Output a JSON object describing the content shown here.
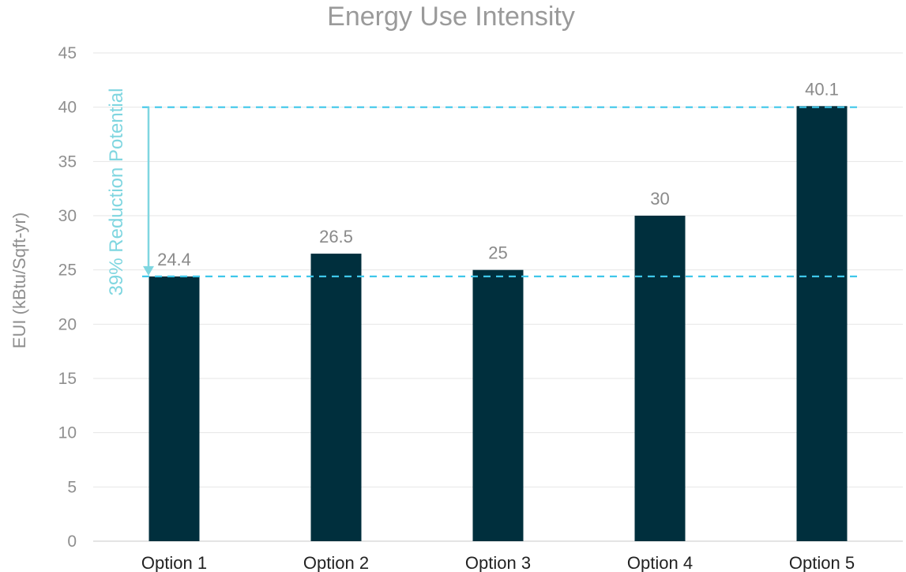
{
  "chart_data": {
    "type": "bar",
    "title": "Energy Use Intensity",
    "xlabel": "",
    "ylabel": "EUI (kBtu/Sqft-yr)",
    "categories": [
      "Option 1",
      "Option 2",
      "Option 3",
      "Option 4",
      "Option 5"
    ],
    "values": [
      24.4,
      26.5,
      25,
      30,
      40.1
    ],
    "data_labels": [
      "24.4",
      "26.5",
      "25",
      "30",
      "40.1"
    ],
    "ylim": [
      0,
      45
    ],
    "yticks": [
      0,
      5,
      10,
      15,
      20,
      25,
      30,
      35,
      40,
      45
    ],
    "grid": true,
    "legend": "none",
    "bar_color": "#002f3d",
    "reference_lines": [
      {
        "value": 40,
        "style": "dashed",
        "color": "#3fc7ea"
      },
      {
        "value": 24.4,
        "style": "dashed",
        "color": "#3fc7ea"
      }
    ],
    "annotation": {
      "text": "39% Reduction Potential",
      "from_value": 40,
      "to_value": 24.4,
      "color": "#7fd6e0"
    }
  }
}
